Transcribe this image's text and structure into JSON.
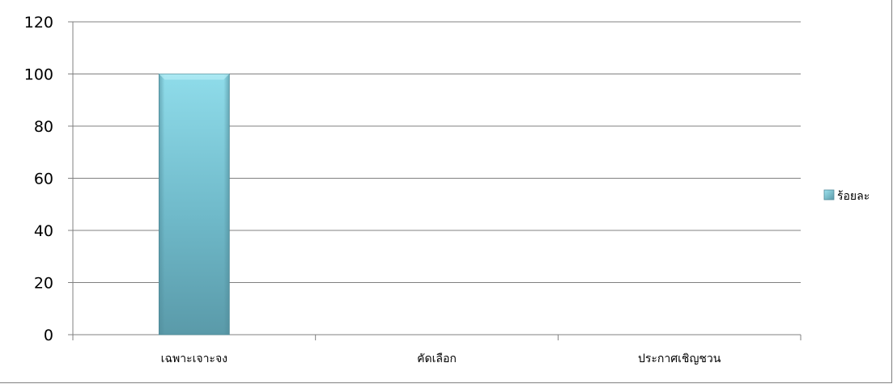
{
  "chart_data": {
    "type": "bar",
    "title": "",
    "xlabel": "",
    "ylabel": "",
    "categories": [
      "เฉพาะเจาะจง",
      "คัดเลือก",
      "ประกาศเชิญชวน"
    ],
    "series": [
      {
        "name": "ร้อยละ",
        "values": [
          100,
          0,
          0
        ],
        "color": "#7fcfdf"
      }
    ],
    "ylim": [
      0,
      120
    ],
    "yticks": [
      0,
      20,
      40,
      60,
      80,
      100,
      120
    ],
    "grid": true,
    "legend_position": "right"
  }
}
